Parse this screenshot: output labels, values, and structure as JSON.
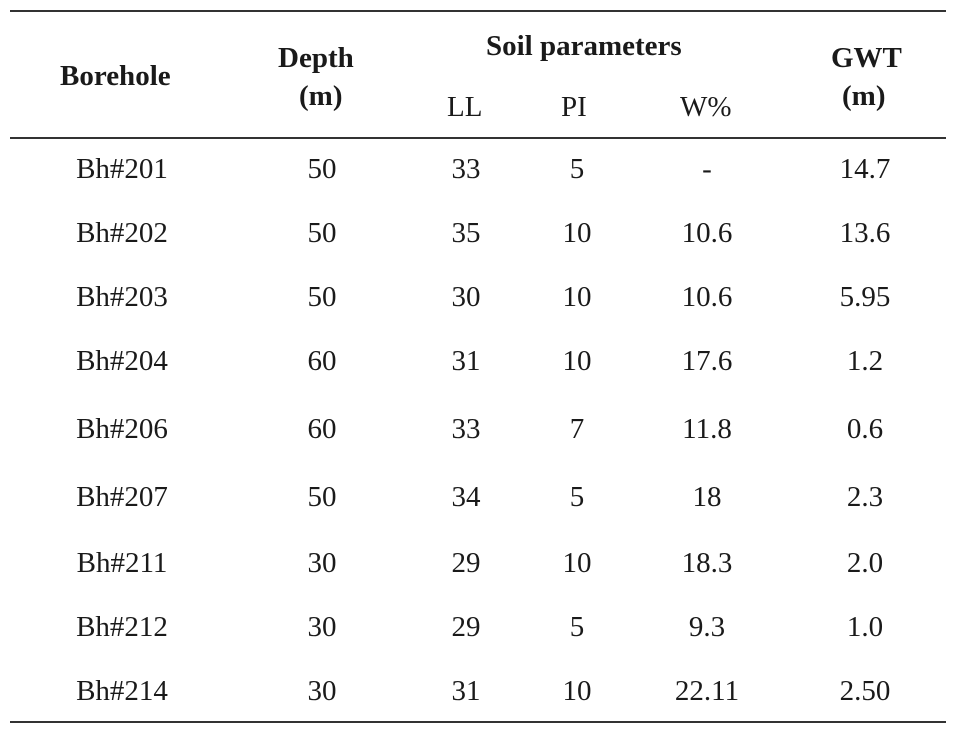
{
  "table": {
    "headers": {
      "borehole": "Borehole",
      "depth_line1": "Depth",
      "depth_line2": "(m)",
      "soil_group": "Soil parameters",
      "ll": "LL",
      "pi": "PI",
      "w": "W%",
      "gwt_line1": "GWT",
      "gwt_line2": "(m)"
    },
    "rows": [
      {
        "borehole": "Bh#201",
        "depth": "50",
        "ll": "33",
        "pi": "5",
        "w": "-",
        "gwt": "14.7"
      },
      {
        "borehole": "Bh#202",
        "depth": "50",
        "ll": "35",
        "pi": "10",
        "w": "10.6",
        "gwt": "13.6"
      },
      {
        "borehole": "Bh#203",
        "depth": "50",
        "ll": "30",
        "pi": "10",
        "w": "10.6",
        "gwt": "5.95"
      },
      {
        "borehole": "Bh#204",
        "depth": "60",
        "ll": "31",
        "pi": "10",
        "w": "17.6",
        "gwt": "1.2"
      },
      {
        "borehole": "Bh#206",
        "depth": "60",
        "ll": "33",
        "pi": "7",
        "w": "11.8",
        "gwt": "0.6"
      },
      {
        "borehole": "Bh#207",
        "depth": "50",
        "ll": "34",
        "pi": "5",
        "w": "18",
        "gwt": "2.3"
      },
      {
        "borehole": "Bh#211",
        "depth": "30",
        "ll": "29",
        "pi": "10",
        "w": "18.3",
        "gwt": "2.0"
      },
      {
        "borehole": "Bh#212",
        "depth": "30",
        "ll": "29",
        "pi": "5",
        "w": "9.3",
        "gwt": "1.0"
      },
      {
        "borehole": "Bh#214",
        "depth": "30",
        "ll": "31",
        "pi": "10",
        "w": "22.11",
        "gwt": "2.50"
      }
    ]
  }
}
